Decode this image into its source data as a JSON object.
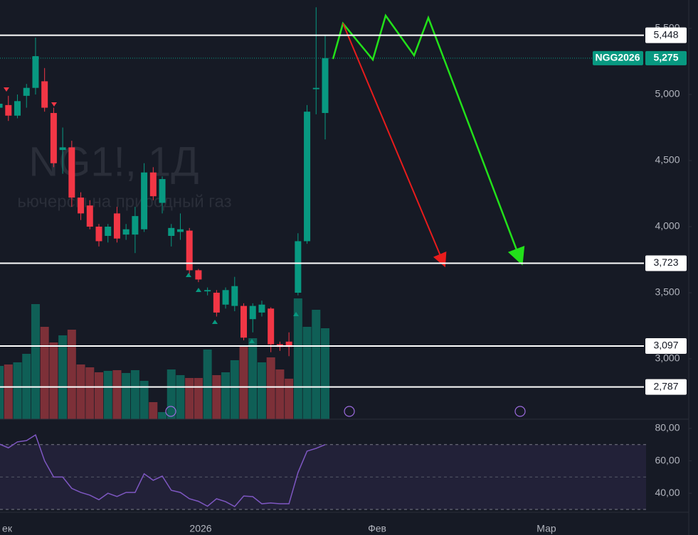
{
  "chart_data": {
    "type": "candlestick",
    "watermark_title": "NG1!, 1Д",
    "watermark_subtitle": "ьючерсы на природный газ",
    "up_color": "#089981",
    "down_color": "#f23645",
    "open": [
      4900,
      4920,
      4840,
      4990,
      5050,
      5100,
      4860,
      4580,
      4600,
      4220,
      4160,
      4000,
      3930,
      4100,
      3940,
      3940,
      3980,
      4410,
      4180,
      3930,
      3960,
      3970,
      3670,
      3510,
      3500,
      3410,
      3400,
      3400,
      3300,
      3350,
      3380,
      3110,
      3130,
      3500,
      3890,
      5040,
      4860
    ],
    "high": [
      4960,
      4990,
      5000,
      5080,
      5430,
      5200,
      4900,
      4750,
      4650,
      4260,
      4200,
      4020,
      4020,
      4150,
      4020,
      4150,
      4480,
      4450,
      4380,
      4020,
      4100,
      3990,
      3680,
      3540,
      3520,
      3540,
      3620,
      3420,
      3420,
      3440,
      3390,
      3130,
      3200,
      3950,
      4920,
      5660,
      5450
    ],
    "low": [
      4800,
      4800,
      4820,
      4900,
      5000,
      4870,
      4450,
      4400,
      4150,
      4050,
      3980,
      3850,
      3880,
      3880,
      3900,
      3800,
      3960,
      4200,
      4100,
      3850,
      3900,
      3640,
      3580,
      3480,
      3320,
      3380,
      3360,
      3140,
      3200,
      3320,
      3050,
      3060,
      3020,
      3480,
      3870,
      4850,
      4660
    ],
    "close": [
      4930,
      4840,
      4950,
      5050,
      5290,
      4900,
      4480,
      4600,
      4220,
      4100,
      4000,
      3890,
      4000,
      3910,
      3980,
      4080,
      4410,
      4230,
      4360,
      3990,
      3980,
      3670,
      3600,
      3520,
      3350,
      3520,
      3550,
      3160,
      3400,
      3410,
      3110,
      3090,
      3090,
      3890,
      4870,
      5050,
      5275
    ],
    "ylim": [
      2543,
      5715
    ],
    "yticks": [
      {
        "value": 3000,
        "label": "3,000"
      },
      {
        "value": 3500,
        "label": "3,500"
      },
      {
        "value": 4000,
        "label": "4,000"
      },
      {
        "value": 4500,
        "label": "4,500"
      },
      {
        "value": 5000,
        "label": "5,000"
      },
      {
        "value": 5500,
        "label": "5,500"
      }
    ],
    "levels": [
      {
        "value": 5448,
        "label": "5,448"
      },
      {
        "value": 3723,
        "label": "3,723"
      },
      {
        "value": 3097,
        "label": "3,097"
      },
      {
        "value": 2787,
        "label": "2,787"
      }
    ],
    "last_price": {
      "name": "NGG2026",
      "value": 5275,
      "label": "5,275"
    },
    "volume": {
      "values": [
        75,
        77,
        80,
        92,
        162,
        130,
        108,
        118,
        126,
        77,
        73,
        66,
        68,
        69,
        65,
        69,
        54,
        24,
        10,
        70,
        62,
        58,
        58,
        98,
        62,
        66,
        83,
        102,
        114,
        80,
        87,
        70,
        57,
        170,
        130,
        154,
        128
      ],
      "ylim": [
        0,
        300
      ]
    },
    "rsi": {
      "type": "line",
      "color": "#7e57c2",
      "values": [
        70.4,
        68,
        71.7,
        72.5,
        76,
        60,
        50,
        50,
        43,
        40.5,
        38.8,
        36,
        40,
        38,
        40.5,
        40.5,
        52,
        48,
        50.6,
        41.8,
        40.5,
        36.6,
        35,
        32,
        36.6,
        34.8,
        31.8,
        38.3,
        37.9,
        33.5,
        34,
        33.5,
        33.5,
        52.8,
        66,
        67.7,
        70
      ],
      "ylim": [
        28.7,
        85.7
      ],
      "yticks": [
        {
          "value": 40,
          "label": "40,00"
        },
        {
          "value": 60,
          "label": "60,00"
        },
        {
          "value": 80,
          "label": "80,00"
        }
      ],
      "band": [
        30,
        70
      ]
    },
    "x_labels": [
      "ек",
      "2026",
      "Фев",
      "Мар"
    ]
  }
}
